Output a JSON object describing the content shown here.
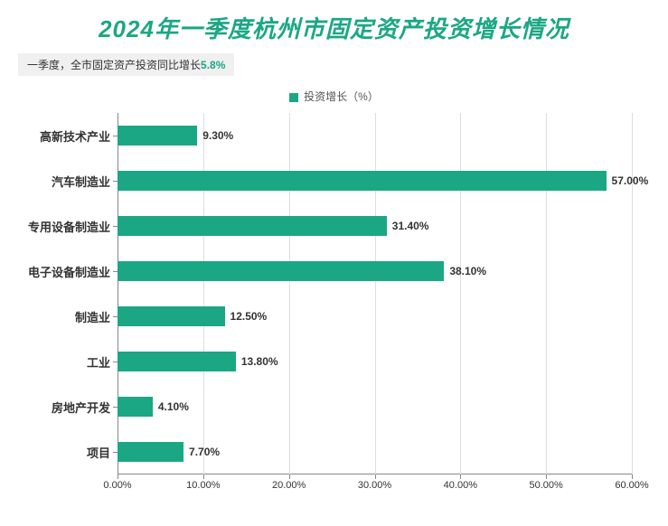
{
  "title": "2024年一季度杭州市固定资产投资增长情况",
  "subtitle_prefix": "一季度，全市固定资产投资同比增长",
  "subtitle_value": "5.8%",
  "legend_label": "投资增长（%）",
  "chart": {
    "type": "bar-horizontal",
    "bar_color": "#1ba784",
    "grid_color": "#dddddd",
    "axis_color": "#888888",
    "background_color": "#ffffff",
    "label_fontsize": 13,
    "title_fontsize": 26,
    "xlim": [
      0,
      60
    ],
    "xtick_step": 10,
    "xtick_labels": [
      "0.00%",
      "10.00%",
      "20.00%",
      "30.00%",
      "40.00%",
      "50.00%",
      "60.00%"
    ],
    "xtick_positions": [
      0,
      10,
      20,
      30,
      40,
      50,
      60
    ],
    "categories": [
      {
        "name": "高新技术产业",
        "value": 9.3,
        "label": "9.30%"
      },
      {
        "name": "汽车制造业",
        "value": 57.0,
        "label": "57.00%"
      },
      {
        "name": "专用设备制造业",
        "value": 31.4,
        "label": "31.40%"
      },
      {
        "name": "电子设备制造业",
        "value": 38.1,
        "label": "38.10%"
      },
      {
        "name": "制造业",
        "value": 12.5,
        "label": "12.50%"
      },
      {
        "name": "工业",
        "value": 13.8,
        "label": "13.80%"
      },
      {
        "name": "房地产开发",
        "value": 4.1,
        "label": "4.10%"
      },
      {
        "name": "项目",
        "value": 7.7,
        "label": "7.70%"
      }
    ]
  }
}
